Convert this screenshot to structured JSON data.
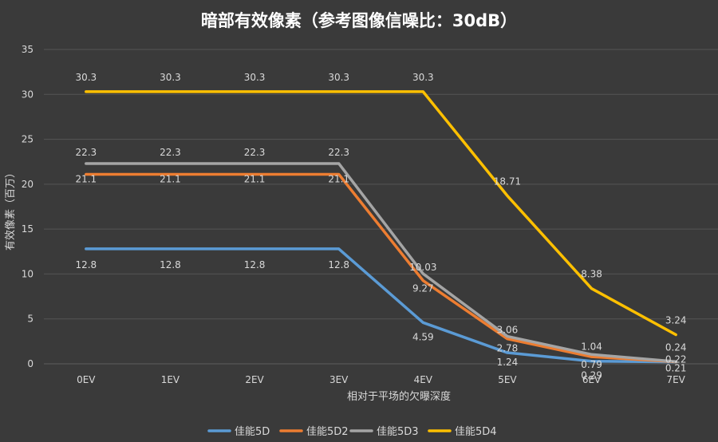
{
  "chart_data": {
    "type": "line",
    "title": "暗部有效像素（参考图像信噪比：30dB）",
    "xlabel": "相对于平场的欠曝深度",
    "ylabel": "有效像素（百万）",
    "categories": [
      "0EV",
      "1EV",
      "2EV",
      "3EV",
      "4EV",
      "5EV",
      "6EV",
      "7EV"
    ],
    "ylim": [
      0,
      35
    ],
    "yticks": [
      0,
      5,
      10,
      15,
      20,
      25,
      30,
      35
    ],
    "grid": true,
    "legend": "bottom",
    "series": [
      {
        "name": "佳能5D",
        "color": "#5b9bd5",
        "values": [
          12.8,
          12.8,
          12.8,
          12.8,
          4.59,
          1.24,
          0.29,
          0.21
        ],
        "labels": [
          "12.8",
          "12.8",
          "12.8",
          "12.8",
          "4.59",
          "1.24",
          "0.29",
          "0.21"
        ]
      },
      {
        "name": "佳能5D2",
        "color": "#ed7d31",
        "values": [
          21.1,
          21.1,
          21.1,
          21.1,
          9.27,
          2.78,
          0.79,
          0.22
        ],
        "labels": [
          "21.1",
          "21.1",
          "21.1",
          "21.1",
          "9.27",
          "2.78",
          "0.79",
          "0.22"
        ]
      },
      {
        "name": "佳能5D3",
        "color": "#a5a5a5",
        "values": [
          22.3,
          22.3,
          22.3,
          22.3,
          10.03,
          3.06,
          1.04,
          0.24
        ],
        "labels": [
          "22.3",
          "22.3",
          "22.3",
          "22.3",
          "10.03",
          "3.06",
          "1.04",
          "0.24"
        ]
      },
      {
        "name": "佳能5D4",
        "color": "#ffc000",
        "values": [
          30.3,
          30.3,
          30.3,
          30.3,
          30.3,
          18.71,
          8.38,
          3.24
        ],
        "labels": [
          "30.3",
          "30.3",
          "30.3",
          "30.3",
          "30.3",
          "18.71",
          "8.38",
          "3.24"
        ]
      }
    ]
  }
}
